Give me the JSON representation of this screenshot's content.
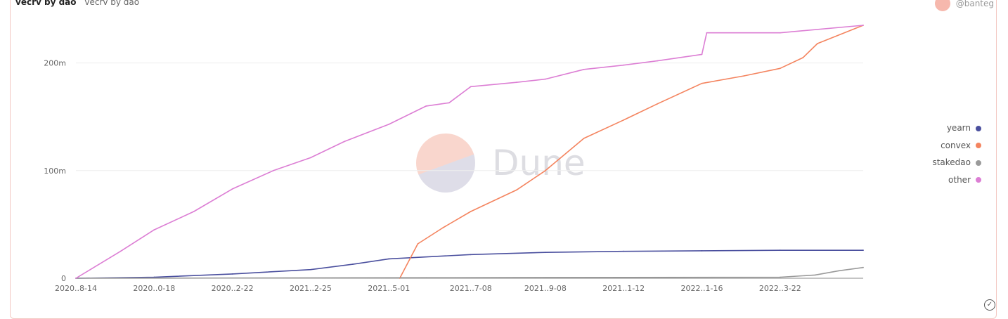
{
  "header": {
    "title": "vecrv by dao",
    "subtitle": "vecrv by dao",
    "author": "@banteg"
  },
  "watermark": {
    "brand": "Dune"
  },
  "chart_data": {
    "type": "line",
    "title": "vecrv by dao",
    "x_type": "date",
    "xlim": [
      "2020-08-14",
      "2022-05-30"
    ],
    "ylim": [
      0,
      235
    ],
    "y_unit": "m",
    "x_tick_labels": [
      "2020..8-14",
      "2020..0-18",
      "2020..2-22",
      "2021..2-25",
      "2021..5-01",
      "2021..7-08",
      "2021..9-08",
      "2021..1-12",
      "2022..1-16",
      "2022..3-22"
    ],
    "x_tick_dates": [
      "2020-08-14",
      "2020-10-18",
      "2020-12-22",
      "2021-02-25",
      "2021-05-01",
      "2021-07-08",
      "2021-09-08",
      "2021-11-12",
      "2022-01-16",
      "2022-03-22"
    ],
    "y_ticks": [
      0,
      100,
      200
    ],
    "y_tick_labels": [
      "0",
      "100m",
      "200m"
    ],
    "grid": true,
    "legend_position": "right",
    "series": [
      {
        "name": "yearn",
        "color": "#4a4f9e",
        "x": [
          "2020-08-14",
          "2020-10-18",
          "2020-12-22",
          "2021-02-25",
          "2021-04-01",
          "2021-05-01",
          "2021-07-08",
          "2021-09-08",
          "2021-11-12",
          "2022-01-16",
          "2022-03-22",
          "2022-05-30"
        ],
        "y": [
          0,
          1,
          4,
          8,
          13,
          18,
          22,
          24,
          25,
          25.5,
          26,
          26
        ]
      },
      {
        "name": "convex",
        "color": "#f4845f",
        "x": [
          "2021-05-10",
          "2021-05-25",
          "2021-06-15",
          "2021-07-08",
          "2021-08-15",
          "2021-09-08",
          "2021-10-10",
          "2021-11-12",
          "2021-12-10",
          "2022-01-16",
          "2022-02-20",
          "2022-03-22",
          "2022-04-10",
          "2022-04-22",
          "2022-05-30"
        ],
        "y": [
          0,
          32,
          47,
          62,
          82,
          100,
          130,
          147,
          162,
          181,
          188,
          195,
          205,
          218,
          235
        ]
      },
      {
        "name": "stakedao",
        "color": "#9a9a9a",
        "x": [
          "2020-08-14",
          "2021-06-01",
          "2022-03-22",
          "2022-04-20",
          "2022-05-10",
          "2022-05-30"
        ],
        "y": [
          0,
          0.5,
          1,
          3,
          7,
          10
        ]
      },
      {
        "name": "other",
        "color": "#dc7ed4",
        "x": [
          "2020-08-14",
          "2020-09-20",
          "2020-10-18",
          "2020-11-20",
          "2020-12-22",
          "2021-01-25",
          "2021-02-25",
          "2021-03-25",
          "2021-05-01",
          "2021-06-01",
          "2021-06-20",
          "2021-07-08",
          "2021-08-15",
          "2021-09-08",
          "2021-10-10",
          "2021-11-12",
          "2021-12-10",
          "2022-01-16",
          "2022-01-20",
          "2022-03-22",
          "2022-05-30"
        ],
        "y": [
          0,
          25,
          45,
          62,
          83,
          100,
          112,
          127,
          143,
          160,
          163,
          178,
          182,
          185,
          194,
          198,
          202,
          208,
          228,
          228,
          235
        ]
      }
    ]
  }
}
